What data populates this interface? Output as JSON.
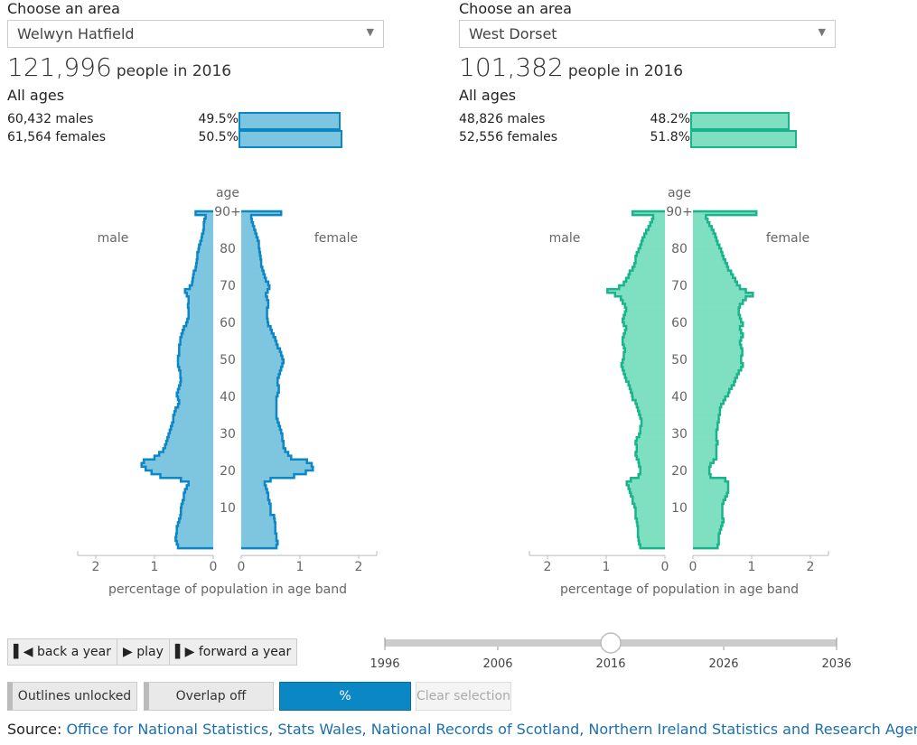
{
  "left": {
    "choose_label": "Choose an area",
    "area": "Welwyn Hatfield",
    "population": "121,996",
    "population_text": "people in 2016",
    "ages_label": "All ages",
    "males_text": "60,432 males",
    "females_text": "61,564 females",
    "males_pct": "49.5%",
    "females_pct": "50.5%",
    "males_share": 0.495,
    "females_share": 0.505
  },
  "right": {
    "choose_label": "Choose an area",
    "area": "West Dorset",
    "population": "101,382",
    "population_text": "people in 2016",
    "ages_label": "All ages",
    "males_text": "48,826 males",
    "females_text": "52,556 females",
    "males_pct": "48.2%",
    "females_pct": "51.8%",
    "males_share": 0.482,
    "females_share": 0.518
  },
  "colors": {
    "left_fill": "#7ec5e0",
    "left_stroke": "#0c87c5",
    "right_fill": "#7fdfc1",
    "right_stroke": "#19b48b",
    "link": "#1a6fb0",
    "button_blue": "#0c87c5"
  },
  "controls": {
    "back": "back a year",
    "play": "play",
    "forward": "forward a year",
    "outlines": "Outlines unlocked",
    "overlap": "Overlap off",
    "pct": "%",
    "clear": "Clear selection"
  },
  "slider": {
    "min": 1996,
    "max": 2036,
    "value": 2016,
    "ticks": [
      "1996",
      "2006",
      "2016",
      "2026",
      "2036"
    ]
  },
  "source": {
    "label": "Source:",
    "text": "Office for National Statistics, Stats Wales, National Records of Scotland, Northern Ireland Statistics and Research Agency"
  },
  "chart_data": [
    {
      "type": "bar",
      "orientation": "horizontal population pyramid",
      "area": "Welwyn Hatfield",
      "year": 2016,
      "age_axis_label": "age",
      "xlabel": "percentage of population in age band",
      "left_label": "male",
      "right_label": "female",
      "xlim": [
        0,
        2
      ],
      "x_ticks": [
        "2",
        "1",
        "0"
      ],
      "age_ticks": [
        "10",
        "20",
        "30",
        "40",
        "50",
        "60",
        "70",
        "80",
        "90+"
      ],
      "age_ticks_values": [
        10,
        20,
        30,
        40,
        50,
        60,
        70,
        80,
        90
      ],
      "ages_note": "ages 0-89 single years, 90 = 90+",
      "male": [
        0.6,
        0.62,
        0.64,
        0.63,
        0.62,
        0.62,
        0.6,
        0.58,
        0.56,
        0.55,
        0.55,
        0.54,
        0.52,
        0.5,
        0.5,
        0.48,
        0.45,
        0.42,
        0.55,
        0.9,
        1.05,
        1.15,
        1.22,
        1.18,
        1.0,
        0.92,
        0.85,
        0.82,
        0.8,
        0.78,
        0.76,
        0.74,
        0.72,
        0.7,
        0.68,
        0.68,
        0.66,
        0.64,
        0.6,
        0.58,
        0.6,
        0.62,
        0.6,
        0.58,
        0.56,
        0.55,
        0.56,
        0.56,
        0.58,
        0.6,
        0.6,
        0.6,
        0.58,
        0.58,
        0.58,
        0.56,
        0.56,
        0.54,
        0.52,
        0.5,
        0.46,
        0.44,
        0.42,
        0.42,
        0.42,
        0.43,
        0.42,
        0.42,
        0.45,
        0.48,
        0.4,
        0.36,
        0.35,
        0.34,
        0.33,
        0.3,
        0.29,
        0.28,
        0.27,
        0.27,
        0.25,
        0.24,
        0.22,
        0.2,
        0.19,
        0.17,
        0.16,
        0.16,
        0.15,
        0.13,
        0.3
      ],
      "female": [
        0.6,
        0.62,
        0.6,
        0.6,
        0.58,
        0.58,
        0.58,
        0.57,
        0.56,
        0.5,
        0.5,
        0.5,
        0.48,
        0.46,
        0.46,
        0.44,
        0.42,
        0.4,
        0.5,
        0.9,
        1.1,
        1.22,
        1.2,
        1.12,
        0.85,
        0.8,
        0.75,
        0.72,
        0.72,
        0.7,
        0.7,
        0.68,
        0.66,
        0.64,
        0.62,
        0.6,
        0.6,
        0.6,
        0.6,
        0.6,
        0.6,
        0.62,
        0.64,
        0.64,
        0.62,
        0.62,
        0.64,
        0.66,
        0.68,
        0.7,
        0.72,
        0.7,
        0.68,
        0.66,
        0.62,
        0.6,
        0.58,
        0.55,
        0.52,
        0.5,
        0.46,
        0.45,
        0.44,
        0.44,
        0.44,
        0.46,
        0.46,
        0.44,
        0.42,
        0.45,
        0.48,
        0.46,
        0.42,
        0.4,
        0.38,
        0.36,
        0.34,
        0.34,
        0.33,
        0.32,
        0.31,
        0.3,
        0.3,
        0.28,
        0.26,
        0.24,
        0.22,
        0.2,
        0.18,
        0.17,
        0.68
      ]
    },
    {
      "type": "bar",
      "orientation": "horizontal population pyramid",
      "area": "West Dorset",
      "year": 2016,
      "age_axis_label": "age",
      "xlabel": "percentage of population in age band",
      "left_label": "male",
      "right_label": "female",
      "xlim": [
        0,
        2
      ],
      "x_ticks": [
        "2",
        "1",
        "0"
      ],
      "age_ticks": [
        "10",
        "20",
        "30",
        "40",
        "50",
        "60",
        "70",
        "80",
        "90+"
      ],
      "age_ticks_values": [
        10,
        20,
        30,
        40,
        50,
        60,
        70,
        80,
        90
      ],
      "ages_note": "ages 0-89 single years, 90 = 90+",
      "male": [
        0.42,
        0.44,
        0.45,
        0.46,
        0.46,
        0.46,
        0.47,
        0.48,
        0.5,
        0.5,
        0.5,
        0.52,
        0.55,
        0.55,
        0.58,
        0.6,
        0.62,
        0.65,
        0.58,
        0.45,
        0.42,
        0.42,
        0.44,
        0.45,
        0.48,
        0.5,
        0.48,
        0.48,
        0.5,
        0.48,
        0.44,
        0.42,
        0.42,
        0.4,
        0.4,
        0.42,
        0.44,
        0.46,
        0.48,
        0.5,
        0.55,
        0.56,
        0.58,
        0.6,
        0.62,
        0.66,
        0.68,
        0.7,
        0.72,
        0.74,
        0.72,
        0.7,
        0.7,
        0.68,
        0.7,
        0.72,
        0.72,
        0.7,
        0.68,
        0.66,
        0.7,
        0.72,
        0.7,
        0.68,
        0.66,
        0.68,
        0.72,
        0.75,
        0.85,
        0.98,
        0.78,
        0.7,
        0.66,
        0.62,
        0.6,
        0.55,
        0.52,
        0.5,
        0.5,
        0.48,
        0.45,
        0.42,
        0.4,
        0.38,
        0.35,
        0.32,
        0.28,
        0.25,
        0.22,
        0.2,
        0.55
      ],
      "female": [
        0.42,
        0.44,
        0.44,
        0.44,
        0.46,
        0.48,
        0.5,
        0.52,
        0.5,
        0.5,
        0.5,
        0.5,
        0.52,
        0.55,
        0.58,
        0.6,
        0.6,
        0.6,
        0.55,
        0.3,
        0.28,
        0.28,
        0.3,
        0.35,
        0.4,
        0.4,
        0.4,
        0.4,
        0.42,
        0.4,
        0.4,
        0.4,
        0.42,
        0.42,
        0.44,
        0.44,
        0.46,
        0.46,
        0.48,
        0.52,
        0.55,
        0.6,
        0.62,
        0.66,
        0.7,
        0.72,
        0.75,
        0.78,
        0.82,
        0.85,
        0.82,
        0.82,
        0.84,
        0.84,
        0.82,
        0.8,
        0.82,
        0.85,
        0.82,
        0.8,
        0.85,
        0.82,
        0.8,
        0.78,
        0.78,
        0.8,
        0.85,
        0.9,
        1.02,
        0.9,
        0.8,
        0.75,
        0.72,
        0.68,
        0.65,
        0.6,
        0.58,
        0.55,
        0.52,
        0.5,
        0.48,
        0.45,
        0.42,
        0.4,
        0.38,
        0.35,
        0.32,
        0.28,
        0.25,
        0.22,
        1.08
      ]
    }
  ]
}
